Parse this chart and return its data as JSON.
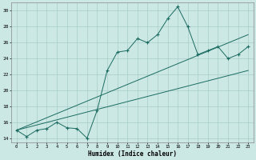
{
  "xlabel": "Humidex (Indice chaleur)",
  "bg_color": "#cce8e4",
  "line_color": "#1a6b60",
  "grid_color": "#a8cdc9",
  "xlim": [
    -0.5,
    23.5
  ],
  "ylim": [
    13.5,
    31
  ],
  "yticks": [
    14,
    16,
    18,
    20,
    22,
    24,
    26,
    28,
    30
  ],
  "xticks": [
    0,
    1,
    2,
    3,
    4,
    5,
    6,
    7,
    8,
    9,
    10,
    11,
    12,
    13,
    14,
    15,
    16,
    17,
    18,
    19,
    20,
    21,
    22,
    23
  ],
  "main_y": [
    15.0,
    14.2,
    15.0,
    15.2,
    16.0,
    15.3,
    15.2,
    14.0,
    17.5,
    22.5,
    24.8,
    25.0,
    26.5,
    26.0,
    27.0,
    29.0,
    30.5,
    28.0,
    24.5,
    25.0,
    25.5,
    24.0,
    24.5,
    25.5
  ],
  "line2_x": [
    0,
    23
  ],
  "line2_y": [
    15.0,
    27.0
  ],
  "line3_x": [
    0,
    23
  ],
  "line3_y": [
    15.0,
    22.5
  ]
}
